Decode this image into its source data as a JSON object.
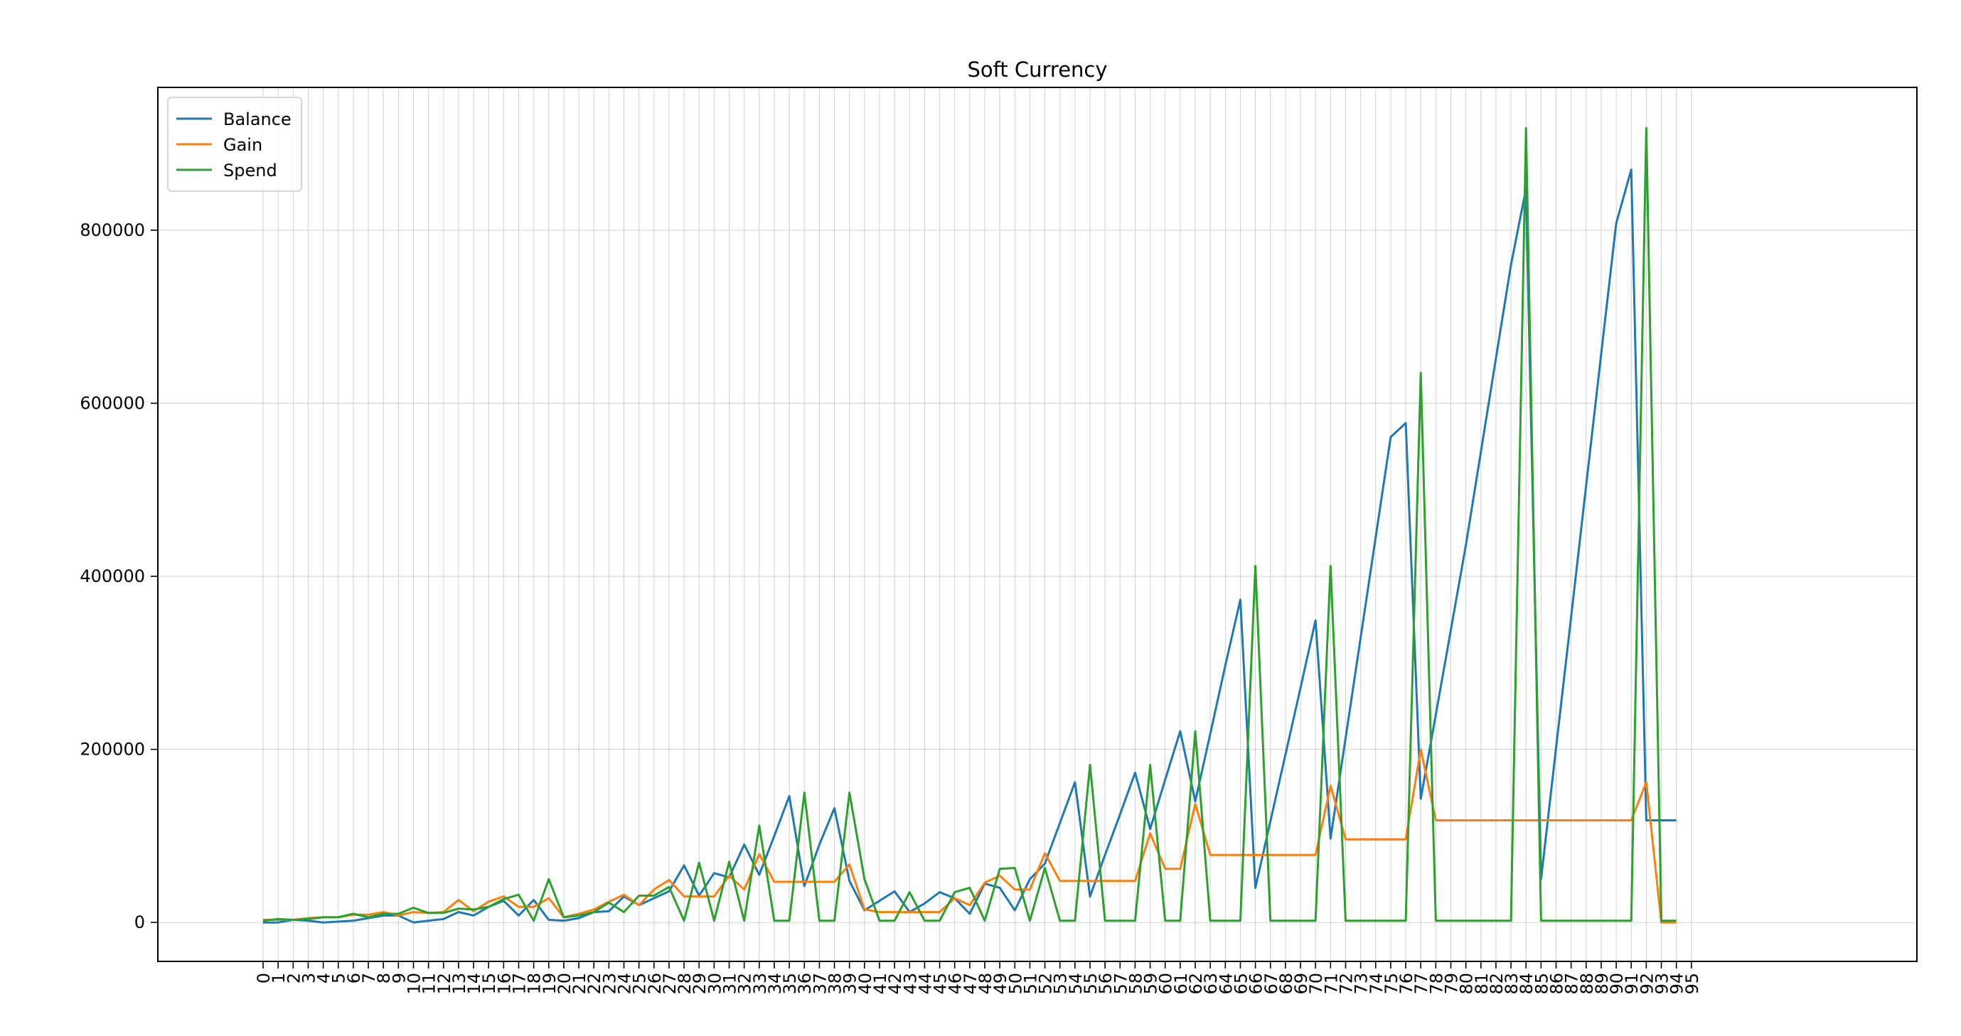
{
  "chart_data": {
    "type": "line",
    "title": "Soft Currency",
    "xlabel": "",
    "ylabel": "",
    "xlim": [
      -7,
      110
    ],
    "ylim": [
      -45000,
      965000
    ],
    "x_ticks": [
      0,
      1,
      2,
      3,
      4,
      5,
      6,
      7,
      8,
      9,
      10,
      11,
      12,
      13,
      14,
      15,
      16,
      17,
      18,
      19,
      20,
      21,
      22,
      23,
      24,
      25,
      26,
      27,
      28,
      29,
      30,
      31,
      32,
      33,
      34,
      35,
      36,
      37,
      38,
      39,
      40,
      41,
      42,
      43,
      44,
      45,
      46,
      47,
      48,
      49,
      50,
      51,
      52,
      53,
      54,
      55,
      56,
      57,
      58,
      59,
      60,
      61,
      62,
      63,
      64,
      65,
      66,
      67,
      68,
      69,
      70,
      71,
      72,
      73,
      74,
      75,
      76,
      77,
      78,
      79,
      80,
      81,
      82,
      83,
      84,
      85,
      86,
      87,
      88,
      89,
      90,
      91,
      92,
      93,
      94,
      95
    ],
    "y_ticks": [
      0,
      200000,
      400000,
      600000,
      800000
    ],
    "grid": true,
    "legend_position": "upper-left",
    "x": [
      0,
      1,
      2,
      3,
      4,
      5,
      6,
      7,
      8,
      9,
      10,
      11,
      12,
      13,
      14,
      15,
      16,
      17,
      18,
      19,
      20,
      21,
      22,
      23,
      24,
      25,
      26,
      27,
      28,
      29,
      30,
      31,
      32,
      33,
      34,
      35,
      36,
      37,
      38,
      39,
      40,
      41,
      42,
      43,
      44,
      45,
      46,
      47,
      48,
      49,
      50,
      51,
      52,
      53,
      54,
      55,
      56,
      57,
      58,
      59,
      60,
      61,
      62,
      63,
      64,
      65,
      66,
      67,
      68,
      69,
      70,
      71,
      72,
      73,
      74,
      75,
      76,
      77,
      78,
      79,
      80,
      81,
      82,
      83,
      84,
      85,
      86,
      87,
      88,
      89,
      90,
      91,
      92,
      93,
      94
    ],
    "series": [
      {
        "name": "Balance",
        "color": "#1f77b4",
        "values": [
          0,
          0,
          3000,
          2000,
          0,
          1000,
          2000,
          5000,
          8000,
          8000,
          0,
          2000,
          4000,
          12000,
          8000,
          18000,
          25000,
          8000,
          26000,
          3000,
          2000,
          5000,
          12000,
          13000,
          30000,
          20000,
          28000,
          36000,
          66000,
          31000,
          57000,
          52000,
          90000,
          55000,
          100000,
          146000,
          42000,
          90000,
          132000,
          48000,
          14000,
          25000,
          36000,
          12000,
          22000,
          35000,
          28000,
          10000,
          45000,
          40000,
          14000,
          50000,
          68000,
          115000,
          162000,
          30000,
          78000,
          125000,
          173000,
          108000,
          165000,
          221000,
          140000,
          218000,
          297000,
          373000,
          40000,
          117000,
          194000,
          271000,
          349000,
          97000,
          213000,
          329000,
          445000,
          561000,
          577000,
          143000,
          240000,
          338000,
          436000,
          544000,
          652000,
          760000,
          848000,
          50000,
          202000,
          353000,
          505000,
          657000,
          808000,
          870000,
          118000,
          118000,
          118000
        ]
      },
      {
        "name": "Gain",
        "color": "#ff7f0e",
        "values": [
          3000,
          3000,
          3000,
          5000,
          6000,
          6000,
          9000,
          9000,
          12000,
          8000,
          12000,
          11000,
          12000,
          26000,
          13000,
          24000,
          30000,
          18000,
          18000,
          28000,
          6000,
          10000,
          15000,
          24000,
          32000,
          20000,
          38000,
          49000,
          30000,
          30000,
          30000,
          54000,
          38000,
          79000,
          47000,
          47000,
          47000,
          47000,
          47000,
          67000,
          15000,
          12000,
          12000,
          12000,
          12000,
          12000,
          28000,
          20000,
          46000,
          54000,
          38000,
          38000,
          80000,
          48000,
          48000,
          48000,
          48000,
          48000,
          48000,
          103000,
          62000,
          62000,
          137000,
          78000,
          78000,
          78000,
          78000,
          78000,
          78000,
          78000,
          78000,
          158000,
          96000,
          96000,
          96000,
          96000,
          96000,
          200000,
          118000,
          118000,
          118000,
          118000,
          118000,
          118000,
          118000,
          118000,
          118000,
          118000,
          118000,
          118000,
          118000,
          118000,
          162000,
          0,
          0
        ]
      },
      {
        "name": "Spend",
        "color": "#2ca02c",
        "values": [
          2000,
          4000,
          3000,
          4000,
          6000,
          6000,
          10000,
          6000,
          10000,
          10000,
          17000,
          11000,
          11000,
          16000,
          15000,
          18000,
          27000,
          32000,
          2000,
          50000,
          6000,
          8000,
          12000,
          23000,
          12000,
          31000,
          31000,
          41000,
          2000,
          69000,
          2000,
          70000,
          2000,
          112000,
          2000,
          2000,
          150000,
          2000,
          2000,
          150000,
          50000,
          2000,
          2000,
          35000,
          2000,
          2000,
          35000,
          40000,
          2000,
          62000,
          63000,
          2000,
          63000,
          2000,
          2000,
          182000,
          2000,
          2000,
          2000,
          182000,
          2000,
          2000,
          221000,
          2000,
          2000,
          2000,
          412000,
          2000,
          2000,
          2000,
          2000,
          412000,
          2000,
          2000,
          2000,
          2000,
          2000,
          635000,
          2000,
          2000,
          2000,
          2000,
          2000,
          2000,
          918000,
          2000,
          2000,
          2000,
          2000,
          2000,
          2000,
          2000,
          918000,
          2000,
          2000
        ]
      }
    ]
  }
}
